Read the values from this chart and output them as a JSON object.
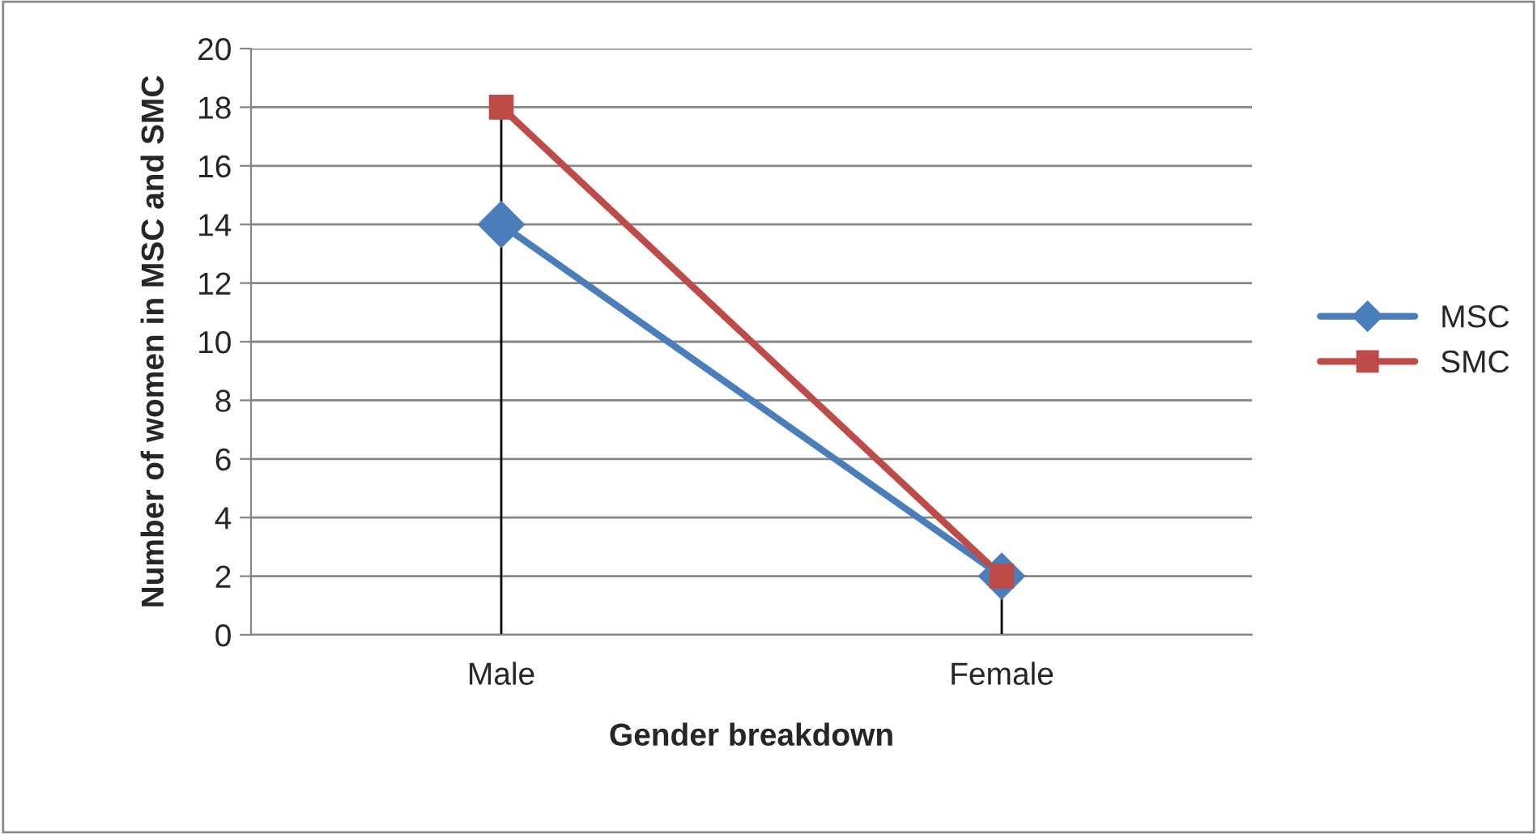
{
  "chart_data": {
    "type": "line",
    "xlabel": "Gender breakdown",
    "ylabel": "Number of women in MSC and SMC",
    "categories": [
      "Male",
      "Female"
    ],
    "series": [
      {
        "name": "MSC",
        "color": "#4a7ebb",
        "values": [
          14,
          2
        ],
        "marker": "diamond"
      },
      {
        "name": "SMC",
        "color": "#be4b48",
        "values": [
          18,
          2
        ],
        "marker": "square"
      }
    ],
    "ref_lines": [
      {
        "axis": "x",
        "value": "Male",
        "color": "#000000"
      },
      {
        "axis": "x",
        "value": "Female",
        "color": "#000000"
      }
    ],
    "ylim": [
      0,
      20
    ],
    "yticks": [
      0,
      2,
      4,
      6,
      8,
      10,
      12,
      14,
      16,
      18,
      20
    ],
    "grid": "y",
    "legend": "right",
    "line_style": "solid"
  }
}
